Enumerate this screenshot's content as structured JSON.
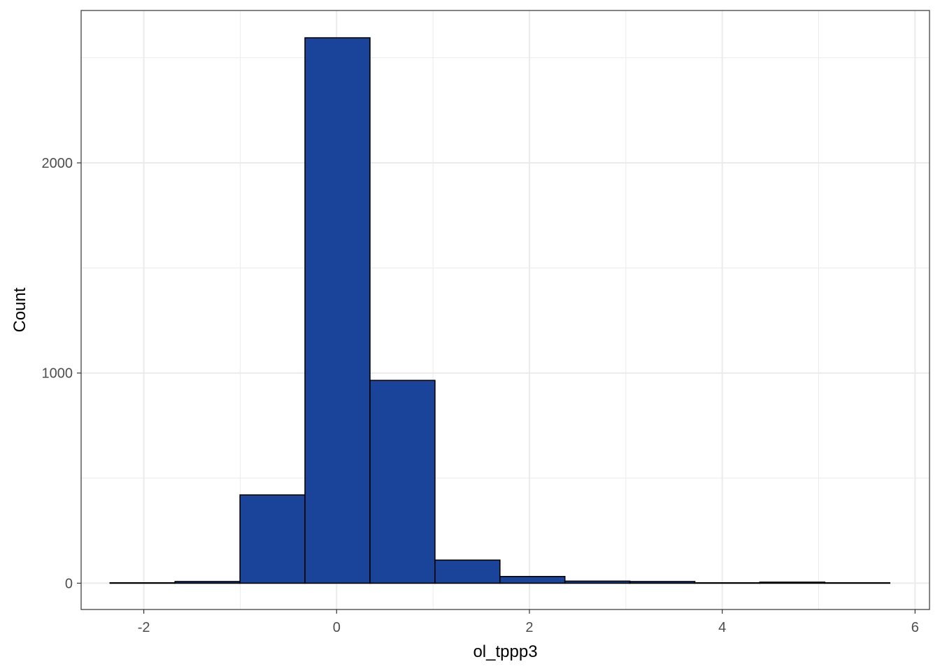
{
  "chart_data": {
    "type": "histogram",
    "title": "",
    "xlabel": "ol_tppp3",
    "ylabel": "Count",
    "xlim": [
      -2.65,
      6.15
    ],
    "ylim": [
      -125,
      2725
    ],
    "x_ticks": [
      -2,
      0,
      2,
      4,
      6
    ],
    "y_ticks": [
      0,
      1000,
      2000
    ],
    "x_minor": [
      -1,
      1,
      3,
      5
    ],
    "y_minor": [
      500,
      1500,
      2500
    ],
    "grid": true,
    "legend": "none",
    "bin_width": 0.674,
    "bins": [
      {
        "x0": -2.35,
        "x1": -1.676,
        "count": 2
      },
      {
        "x0": -1.676,
        "x1": -1.002,
        "count": 8
      },
      {
        "x0": -1.002,
        "x1": -0.328,
        "count": 420
      },
      {
        "x0": -0.328,
        "x1": 0.346,
        "count": 2595
      },
      {
        "x0": 0.346,
        "x1": 1.02,
        "count": 965
      },
      {
        "x0": 1.02,
        "x1": 1.694,
        "count": 110
      },
      {
        "x0": 1.694,
        "x1": 2.368,
        "count": 32
      },
      {
        "x0": 2.368,
        "x1": 3.042,
        "count": 10
      },
      {
        "x0": 3.042,
        "x1": 3.716,
        "count": 8
      },
      {
        "x0": 3.716,
        "x1": 4.39,
        "count": 2
      },
      {
        "x0": 4.39,
        "x1": 5.064,
        "count": 5
      },
      {
        "x0": 5.064,
        "x1": 5.738,
        "count": 2
      }
    ],
    "fill_color": "#1a4499",
    "outline_color": "#000000",
    "grid_color": "#ebebeb",
    "panel_border_color": "#333333"
  }
}
